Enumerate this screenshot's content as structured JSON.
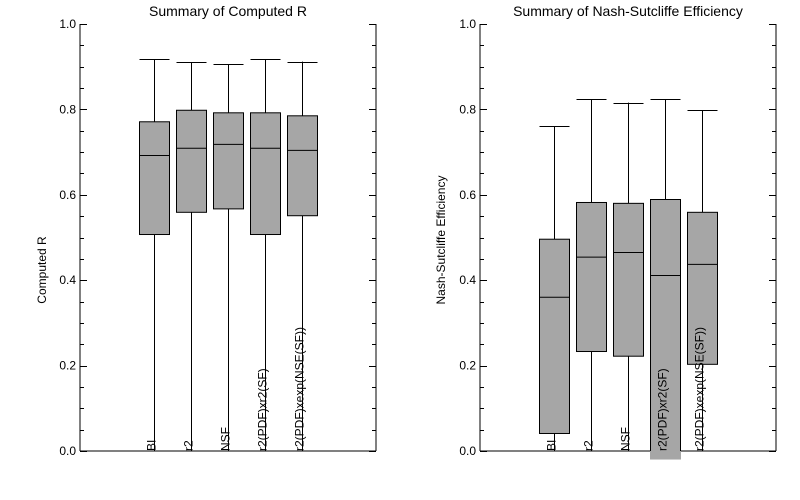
{
  "chart_data": [
    {
      "type": "box",
      "title": "Summary of Computed R",
      "xlabel": "",
      "ylabel": "Computed R",
      "ylim": [
        0,
        1
      ],
      "yticks": [
        "0.0",
        "0.2",
        "0.4",
        "0.6",
        "0.8",
        "1.0"
      ],
      "minor_tick_step": 0.05,
      "grid": false,
      "box_color": "#a6a6a6",
      "categories": [
        "BI",
        "r2",
        "NSF",
        "r2(PDF)xr2(SF)",
        "r2(PDF)xexp(NSE(SF))"
      ],
      "boxes": [
        {
          "min": 0.0,
          "q1": 0.507,
          "median": 0.692,
          "q3": 0.771,
          "max": 0.917
        },
        {
          "min": 0.0,
          "q1": 0.559,
          "median": 0.709,
          "q3": 0.798,
          "max": 0.91
        },
        {
          "min": 0.0,
          "q1": 0.567,
          "median": 0.718,
          "q3": 0.792,
          "max": 0.906
        },
        {
          "min": 0.0,
          "q1": 0.507,
          "median": 0.709,
          "q3": 0.792,
          "max": 0.917
        },
        {
          "min": 0.0,
          "q1": 0.551,
          "median": 0.704,
          "q3": 0.785,
          "max": 0.912
        }
      ]
    },
    {
      "type": "box",
      "title": "Summary of Nash-Sutcliffe Efficiency",
      "xlabel": "",
      "ylabel": "Nash-Sutcliffe Efficiency",
      "ylim": [
        0,
        1
      ],
      "yticks": [
        "0.0",
        "0.2",
        "0.4",
        "0.6",
        "0.8",
        "1.0"
      ],
      "minor_tick_step": 0.05,
      "grid": false,
      "box_color": "#a6a6a6",
      "categories": [
        "BI",
        "r2",
        "NSF",
        "r2(PDF)xr2(SF)",
        "r2(PDF)xexp(NSE(SF))"
      ],
      "boxes": [
        {
          "min": 0.0,
          "q1": 0.041,
          "median": 0.36,
          "q3": 0.496,
          "max": 0.76
        },
        {
          "min": 0.0,
          "q1": 0.233,
          "median": 0.454,
          "q3": 0.582,
          "max": 0.824
        },
        {
          "min": 0.0,
          "q1": 0.222,
          "median": 0.465,
          "q3": 0.58,
          "max": 0.816
        },
        {
          "min": -0.02,
          "q1": -0.02,
          "median": 0.411,
          "q3": 0.589,
          "max": 0.824
        },
        {
          "min": 0.0,
          "q1": 0.203,
          "median": 0.437,
          "q3": 0.559,
          "max": 0.798
        }
      ]
    }
  ]
}
